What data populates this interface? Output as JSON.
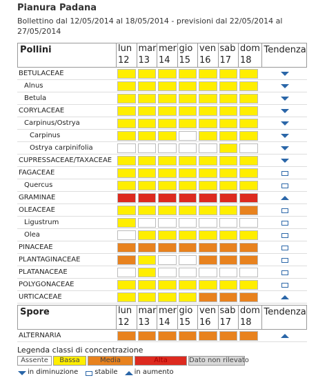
{
  "header": {
    "title": "Pianura Padana",
    "bulletin": "Bollettino dal 12/05/2014 al 18/05/2014 - previsioni dal 22/05/2014 al 27/05/2014"
  },
  "days": [
    {
      "name": "lun",
      "num": 12
    },
    {
      "name": "mar",
      "num": 13
    },
    {
      "name": "mer",
      "num": 14
    },
    {
      "name": "gio",
      "num": 15
    },
    {
      "name": "ven",
      "num": 16
    },
    {
      "name": "sab",
      "num": 17
    },
    {
      "name": "dom",
      "num": 18
    }
  ],
  "trend_header": "Tendenza",
  "pollen": {
    "title": "Pollini",
    "families": [
      {
        "name": "BETULACEAE",
        "classes": [
          1,
          1,
          1,
          1,
          1,
          1,
          1
        ],
        "trend": "down",
        "children": [
          {
            "name": "Alnus",
            "classes": [
              1,
              1,
              1,
              1,
              1,
              1,
              1
            ],
            "trend": "down"
          },
          {
            "name": "Betula",
            "classes": [
              1,
              1,
              1,
              1,
              1,
              1,
              1
            ],
            "trend": "down"
          }
        ]
      },
      {
        "name": "CORYLACEAE",
        "classes": [
          1,
          1,
          1,
          1,
          1,
          1,
          1
        ],
        "trend": "down",
        "children": [
          {
            "name": "Carpinus/Ostrya",
            "classes": [
              1,
              1,
              1,
              1,
              1,
              1,
              1
            ],
            "trend": "down",
            "children": [
              {
                "name": "Carpinus",
                "classes": [
                  1,
                  1,
                  1,
                  0,
                  1,
                  1,
                  1
                ],
                "trend": "down"
              },
              {
                "name": "Ostrya carpinifolia",
                "classes": [
                  0,
                  0,
                  0,
                  0,
                  0,
                  1,
                  0
                ],
                "trend": "down"
              }
            ]
          }
        ]
      },
      {
        "name": "CUPRESSACEAE/TAXACEAE",
        "classes": [
          1,
          1,
          1,
          1,
          1,
          1,
          1
        ],
        "trend": "down"
      },
      {
        "name": "FAGACEAE",
        "classes": [
          1,
          1,
          1,
          1,
          1,
          1,
          1
        ],
        "trend": "stable",
        "children": [
          {
            "name": "Quercus",
            "classes": [
              1,
              1,
              1,
              1,
              1,
              1,
              1
            ],
            "trend": "stable"
          }
        ]
      },
      {
        "name": "GRAMINAE",
        "classes": [
          3,
          3,
          3,
          3,
          3,
          3,
          3
        ],
        "trend": "up"
      },
      {
        "name": "OLEACEAE",
        "classes": [
          1,
          1,
          1,
          1,
          1,
          1,
          2
        ],
        "trend": "stable",
        "children": [
          {
            "name": "Ligustrum",
            "classes": [
              1,
              0,
              0,
              0,
              0,
              0,
              0
            ],
            "trend": "stable"
          },
          {
            "name": "Olea",
            "classes": [
              0,
              1,
              1,
              1,
              1,
              1,
              1
            ],
            "trend": "stable"
          }
        ]
      },
      {
        "name": "PINACEAE",
        "classes": [
          2,
          2,
          2,
          2,
          2,
          2,
          2
        ],
        "trend": "stable"
      },
      {
        "name": "PLANTAGINACEAE",
        "classes": [
          2,
          1,
          0,
          0,
          2,
          2,
          2
        ],
        "trend": "stable"
      },
      {
        "name": "PLATANACEAE",
        "classes": [
          0,
          1,
          0,
          0,
          0,
          0,
          0
        ],
        "trend": "stable"
      },
      {
        "name": "POLYGONACEAE",
        "classes": [
          1,
          1,
          1,
          1,
          1,
          1,
          1
        ],
        "trend": "stable"
      },
      {
        "name": "URTICACEAE",
        "classes": [
          1,
          1,
          1,
          1,
          2,
          2,
          2
        ],
        "trend": "up"
      }
    ]
  },
  "spores": {
    "title": "Spore",
    "families": [
      {
        "name": "ALTERNARIA",
        "classes": [
          2,
          2,
          2,
          2,
          2,
          2,
          2
        ],
        "trend": "up"
      }
    ]
  },
  "legend": {
    "title": "Legenda classi di concentrazione",
    "items": [
      {
        "label": "Assente",
        "color": "#ffffff"
      },
      {
        "label": "Bassa",
        "color": "#ffee00"
      },
      {
        "label": "Media",
        "color": "#e8821e"
      },
      {
        "label": "Alta",
        "color": "#dd2a1f"
      },
      {
        "label": "Dato non rilevato",
        "color": "#d8d8d8"
      }
    ],
    "trends": [
      {
        "icon": "down",
        "label": "in diminuzione"
      },
      {
        "icon": "stable",
        "label": "stabile"
      },
      {
        "icon": "up",
        "label": "in aumento"
      }
    ]
  }
}
